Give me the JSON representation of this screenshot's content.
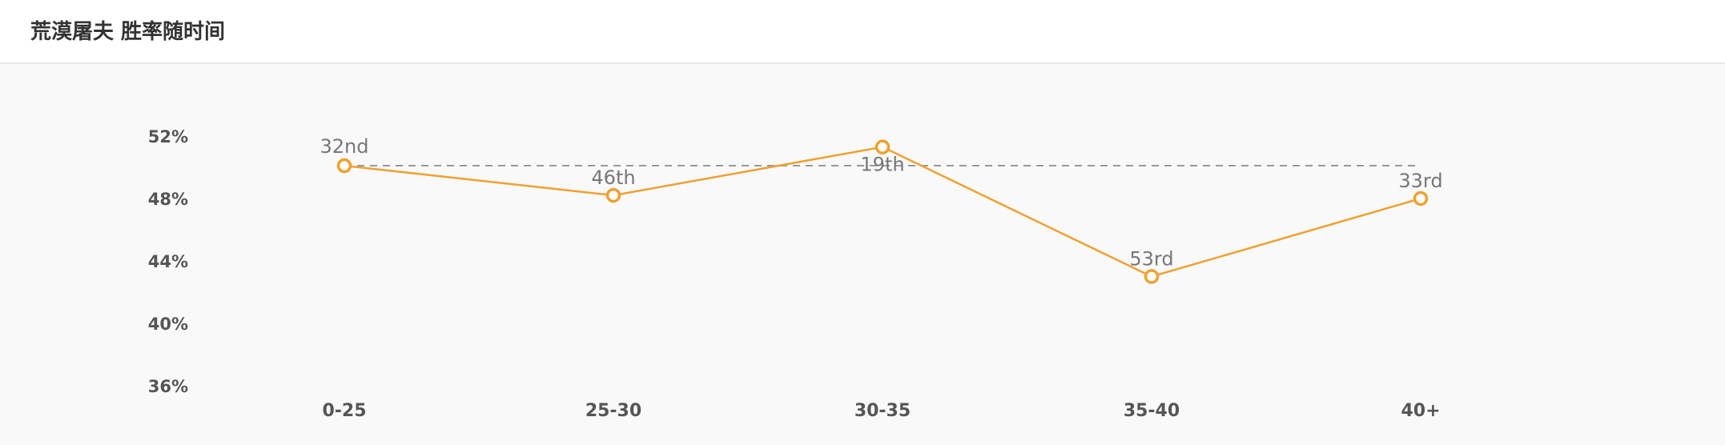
{
  "panel": {
    "title": "荒漠屠夫 胜率随时间"
  },
  "chart_data": {
    "type": "line",
    "title": "荒漠屠夫 胜率随时间",
    "xlabel": "",
    "ylabel": "",
    "categories": [
      "0-25",
      "25-30",
      "30-35",
      "35-40",
      "40+"
    ],
    "y_ticks": [
      "52%",
      "48%",
      "44%",
      "40%",
      "36%"
    ],
    "ylim": [
      36,
      52
    ],
    "series": [
      {
        "values": [
          50.1,
          48.2,
          51.3,
          43.0,
          48.0
        ],
        "labels": [
          "32nd",
          "46th",
          "19th",
          "53rd",
          "33rd"
        ],
        "color": "#f0a030"
      }
    ],
    "reference_line": {
      "value": 50.1,
      "color": "#999999",
      "style": "dashed"
    },
    "grid": false,
    "legend": "none"
  }
}
